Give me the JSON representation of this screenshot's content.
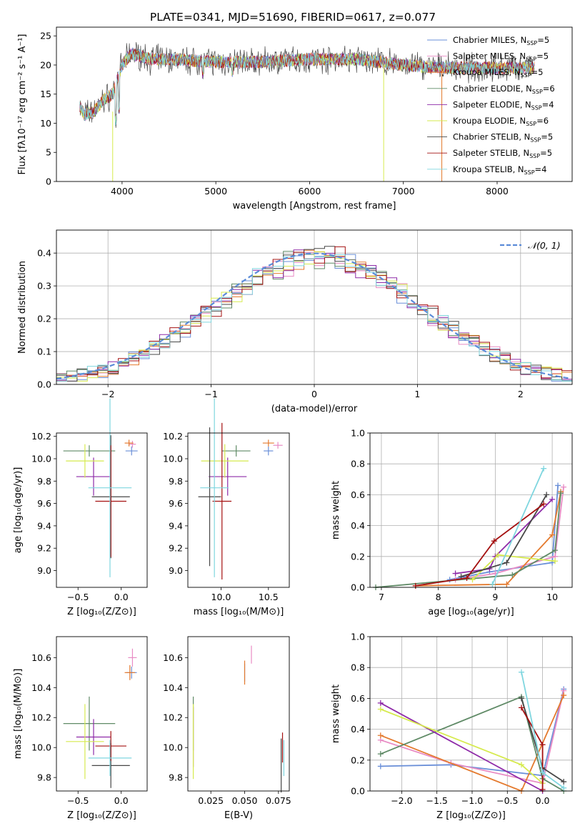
{
  "chart_data": [
    {
      "type": "line",
      "title": "PLATE=0341, MJD=51690, FIBERID=0617, z=0.077",
      "xlabel": "wavelength [Angstrom, rest frame]",
      "ylabel": "Flux [fλ10⁻¹⁷ erg cm⁻² s⁻¹ A⁻¹]",
      "xlim": [
        3300,
        8800
      ],
      "ylim": [
        0,
        26.5
      ],
      "xticks": [
        4000,
        5000,
        6000,
        7000,
        8000
      ],
      "yticks": [
        0,
        5,
        10,
        15,
        20,
        25
      ],
      "legend": "upper-right",
      "spectrum_shape": [
        [
          3550,
          13
        ],
        [
          3600,
          11.5
        ],
        [
          3700,
          12
        ],
        [
          3800,
          14
        ],
        [
          3900,
          15
        ],
        [
          4000,
          20
        ],
        [
          4100,
          22
        ],
        [
          4300,
          21
        ],
        [
          4500,
          21
        ],
        [
          5000,
          20.5
        ],
        [
          5500,
          20.5
        ],
        [
          6000,
          21
        ],
        [
          6500,
          21
        ],
        [
          7000,
          20
        ],
        [
          7500,
          19.5
        ],
        [
          8000,
          19.5
        ],
        [
          8400,
          19.5
        ]
      ],
      "series": [
        {
          "name": "Chabrier MILES",
          "nssp": "5",
          "color": "#6a8fd8"
        },
        {
          "name": "Salpeter MILES",
          "nssp": "5",
          "color": "#e88bc4"
        },
        {
          "name": "Kroupa MILES",
          "nssp": "5",
          "color": "#e47a2e"
        },
        {
          "name": "Chabrier ELODIE",
          "nssp": "6",
          "color": "#5f8a66"
        },
        {
          "name": "Salpeter ELODIE",
          "nssp": "4",
          "color": "#8e2aa8"
        },
        {
          "name": "Kroupa ELODIE",
          "nssp": "6",
          "color": "#d6ea4e"
        },
        {
          "name": "Chabrier STELIB",
          "nssp": "5",
          "color": "#474747"
        },
        {
          "name": "Salpeter STELIB",
          "nssp": "5",
          "color": "#a41010"
        },
        {
          "name": "Kroupa STELIB",
          "nssp": "4",
          "color": "#7fd6df"
        }
      ]
    },
    {
      "type": "line",
      "xlabel": "(data-model)/error",
      "ylabel": "Normed distribution",
      "xlim": [
        -2.5,
        2.5
      ],
      "ylim": [
        0,
        0.47
      ],
      "xticks": [
        -2,
        -1,
        0,
        1,
        2
      ],
      "yticks": [
        0.0,
        0.1,
        0.2,
        0.3,
        0.4
      ],
      "grid": true,
      "legend": "upper-right",
      "gaussian_label": "𝒩(0, 1)",
      "gaussian_color": "#5b8bd8"
    },
    {
      "type": "scatter",
      "xlabel": "Z [log₁₀(Z/Z⊙)]",
      "ylabel": "age  [log₁₀(age/yr)]",
      "xlim": [
        -0.75,
        0.3
      ],
      "ylim": [
        8.85,
        10.23
      ],
      "xticks": [
        -0.5,
        0.0
      ],
      "yticks": [
        9.0,
        9.2,
        9.4,
        9.6,
        9.8,
        10.0,
        10.2
      ],
      "points": [
        {
          "x": 0.12,
          "y": 10.07,
          "xerr": 0.07,
          "yerr": 0.04,
          "color": "#6a8fd8"
        },
        {
          "x": 0.13,
          "y": 10.13,
          "xerr": 0.04,
          "yerr": 0.03,
          "color": "#e88bc4"
        },
        {
          "x": 0.09,
          "y": 10.14,
          "xerr": 0.05,
          "yerr": 0.03,
          "color": "#e47a2e"
        },
        {
          "x": -0.37,
          "y": 10.07,
          "xerr": 0.3,
          "yerr": 0.05,
          "color": "#5f8a66"
        },
        {
          "x": -0.32,
          "y": 9.84,
          "xerr": 0.2,
          "yerr": 0.17,
          "color": "#8e2aa8"
        },
        {
          "x": -0.42,
          "y": 9.98,
          "xerr": 0.22,
          "yerr": 0.15,
          "color": "#d6ea4e"
        },
        {
          "x": -0.12,
          "y": 9.66,
          "xerr": 0.22,
          "yerr": 0.55,
          "color": "#474747"
        },
        {
          "x": -0.12,
          "y": 9.62,
          "xerr": 0.18,
          "yerr": 0.5,
          "color": "#a41010"
        },
        {
          "x": -0.13,
          "y": 9.74,
          "xerr": 0.25,
          "yerr": 0.8,
          "color": "#7fd6df"
        }
      ]
    },
    {
      "type": "scatter",
      "xlabel": "mass [log₁₀(M/M⊙)]",
      "xlim": [
        9.65,
        10.72
      ],
      "ylim": [
        8.85,
        10.23
      ],
      "xticks": [
        10.0,
        10.5
      ],
      "yticks": [
        9.0,
        9.2,
        9.4,
        9.6,
        9.8,
        10.0,
        10.2
      ],
      "points": [
        {
          "x": 10.5,
          "y": 10.07,
          "xerr": 0.05,
          "yerr": 0.04,
          "color": "#6a8fd8"
        },
        {
          "x": 10.6,
          "y": 10.12,
          "xerr": 0.05,
          "yerr": 0.03,
          "color": "#e88bc4"
        },
        {
          "x": 10.5,
          "y": 10.14,
          "xerr": 0.06,
          "yerr": 0.03,
          "color": "#e47a2e"
        },
        {
          "x": 10.16,
          "y": 10.07,
          "xerr": 0.15,
          "yerr": 0.05,
          "color": "#5f8a66"
        },
        {
          "x": 10.07,
          "y": 9.84,
          "xerr": 0.2,
          "yerr": 0.17,
          "color": "#8e2aa8"
        },
        {
          "x": 10.04,
          "y": 9.98,
          "xerr": 0.25,
          "yerr": 0.15,
          "color": "#d6ea4e"
        },
        {
          "x": 9.88,
          "y": 9.66,
          "xerr": 0.12,
          "yerr": 0.62,
          "color": "#474747"
        },
        {
          "x": 10.01,
          "y": 9.62,
          "xerr": 0.1,
          "yerr": 0.7,
          "color": "#a41010"
        },
        {
          "x": 9.93,
          "y": 9.74,
          "xerr": 0.15,
          "yerr": 0.8,
          "color": "#7fd6df"
        }
      ]
    },
    {
      "type": "line",
      "xlabel": "age  [log₁₀(age/yr)]",
      "ylabel": "mass weight",
      "xlim": [
        6.8,
        10.35
      ],
      "ylim": [
        0,
        1.0
      ],
      "xticks": [
        7,
        8,
        9,
        10
      ],
      "yticks": [
        0.0,
        0.2,
        0.4,
        0.6,
        0.8,
        1.0
      ],
      "grid": true,
      "series": [
        {
          "color": "#6a8fd8",
          "x": [
            8.2,
            8.9,
            10.0,
            10.1
          ],
          "y": [
            0.05,
            0.1,
            0.16,
            0.66
          ]
        },
        {
          "color": "#e88bc4",
          "x": [
            8.3,
            9.0,
            10.05,
            10.2
          ],
          "y": [
            0.05,
            0.09,
            0.2,
            0.65
          ]
        },
        {
          "color": "#e47a2e",
          "x": [
            7.6,
            9.2,
            10.0,
            10.15
          ],
          "y": [
            0.01,
            0.02,
            0.34,
            0.62
          ]
        },
        {
          "color": "#5f8a66",
          "x": [
            6.9,
            9.3,
            10.05,
            10.15
          ],
          "y": [
            0.0,
            0.08,
            0.24,
            0.61
          ]
        },
        {
          "color": "#8e2aa8",
          "x": [
            8.3,
            8.9,
            9.0,
            10.0
          ],
          "y": [
            0.09,
            0.12,
            0.2,
            0.57
          ]
        },
        {
          "color": "#d6ea4e",
          "x": [
            8.6,
            9.05,
            10.05
          ],
          "y": [
            0.05,
            0.21,
            0.17
          ]
        },
        {
          "color": "#474747",
          "x": [
            8.4,
            9.2,
            9.9
          ],
          "y": [
            0.07,
            0.16,
            0.6
          ]
        },
        {
          "color": "#a41010",
          "x": [
            7.6,
            8.5,
            8.98,
            9.85
          ],
          "y": [
            0.01,
            0.06,
            0.3,
            0.54
          ]
        },
        {
          "color": "#7fd6df",
          "x": [
            8.95,
            9.85
          ],
          "y": [
            0.02,
            0.77
          ]
        }
      ]
    },
    {
      "type": "scatter",
      "xlabel": "Z [log₁₀(Z/Z⊙)]",
      "ylabel": "mass [log₁₀(M/M⊙)]",
      "xlim": [
        -0.75,
        0.3
      ],
      "ylim": [
        9.71,
        10.74
      ],
      "xticks": [
        -0.5,
        0.0
      ],
      "yticks": [
        9.8,
        10.0,
        10.2,
        10.4,
        10.6
      ],
      "points": [
        {
          "x": 0.12,
          "y": 10.5,
          "xerr": 0.06,
          "yerr": 0.04,
          "color": "#6a8fd8"
        },
        {
          "x": 0.13,
          "y": 10.6,
          "xerr": 0.05,
          "yerr": 0.06,
          "color": "#e88bc4"
        },
        {
          "x": 0.1,
          "y": 10.5,
          "xerr": 0.06,
          "yerr": 0.05,
          "color": "#e47a2e"
        },
        {
          "x": -0.37,
          "y": 10.16,
          "xerr": 0.3,
          "yerr": 0.18,
          "color": "#5f8a66"
        },
        {
          "x": -0.32,
          "y": 10.07,
          "xerr": 0.2,
          "yerr": 0.12,
          "color": "#8e2aa8"
        },
        {
          "x": -0.42,
          "y": 10.04,
          "xerr": 0.22,
          "yerr": 0.25,
          "color": "#d6ea4e"
        },
        {
          "x": -0.12,
          "y": 9.88,
          "xerr": 0.22,
          "yerr": 0.15,
          "color": "#474747"
        },
        {
          "x": -0.12,
          "y": 10.01,
          "xerr": 0.18,
          "yerr": 0.1,
          "color": "#a41010"
        },
        {
          "x": -0.13,
          "y": 9.93,
          "xerr": 0.25,
          "yerr": 0.12,
          "color": "#7fd6df"
        }
      ]
    },
    {
      "type": "scatter",
      "xlabel": "E(B-V)",
      "xlim": [
        0.008,
        0.083
      ],
      "ylim": [
        9.71,
        10.74
      ],
      "xticks": [
        0.025,
        0.05,
        0.075
      ],
      "yticks": [
        9.8,
        10.0,
        10.2,
        10.4,
        10.6
      ],
      "points": [
        {
          "x": 0.05,
          "y": 10.5,
          "xerr": 0.0,
          "yerr": 0.06,
          "color": "#6a8fd8"
        },
        {
          "x": 0.055,
          "y": 10.62,
          "xerr": 0.0,
          "yerr": 0.06,
          "color": "#e88bc4"
        },
        {
          "x": 0.05,
          "y": 10.5,
          "xerr": 0.0,
          "yerr": 0.08,
          "color": "#e47a2e"
        },
        {
          "x": 0.012,
          "y": 10.16,
          "xerr": 0.0,
          "yerr": 0.18,
          "color": "#5f8a66"
        },
        {
          "x": 0.012,
          "y": 10.07,
          "xerr": 0.0,
          "yerr": 0.2,
          "color": "#8e2aa8"
        },
        {
          "x": 0.012,
          "y": 10.04,
          "xerr": 0.0,
          "yerr": 0.25,
          "color": "#d6ea4e"
        },
        {
          "x": 0.077,
          "y": 9.88,
          "xerr": 0.0,
          "yerr": 0.18,
          "color": "#474747"
        },
        {
          "x": 0.078,
          "y": 10.0,
          "xerr": 0.0,
          "yerr": 0.1,
          "color": "#a41010"
        },
        {
          "x": 0.079,
          "y": 9.93,
          "xerr": 0.0,
          "yerr": 0.12,
          "color": "#7fd6df"
        }
      ]
    },
    {
      "type": "line",
      "xlabel": "Z [log₁₀(Z/Z⊙)]",
      "ylabel": "mass weight",
      "xlim": [
        -2.45,
        0.42
      ],
      "ylim": [
        0,
        1.0
      ],
      "xticks": [
        -2.0,
        -1.5,
        -1.0,
        -0.5,
        0.0
      ],
      "yticks": [
        0.0,
        0.2,
        0.4,
        0.6,
        0.8,
        1.0
      ],
      "grid": true,
      "series": [
        {
          "color": "#6a8fd8",
          "x": [
            -2.3,
            -1.3,
            0.0,
            0.3
          ],
          "y": [
            0.16,
            0.17,
            0.1,
            0.66
          ]
        },
        {
          "color": "#e88bc4",
          "x": [
            -2.3,
            -1.3,
            0.0,
            0.3
          ],
          "y": [
            0.33,
            0.18,
            0.05,
            0.65
          ]
        },
        {
          "color": "#e47a2e",
          "x": [
            -2.3,
            -0.3,
            0.3
          ],
          "y": [
            0.36,
            0.0,
            0.62
          ]
        },
        {
          "color": "#5f8a66",
          "x": [
            -2.3,
            -0.3,
            0.0,
            0.3
          ],
          "y": [
            0.24,
            0.61,
            0.08,
            0.0
          ]
        },
        {
          "color": "#8e2aa8",
          "x": [
            -2.3,
            0.0
          ],
          "y": [
            0.57,
            0.0
          ]
        },
        {
          "color": "#d6ea4e",
          "x": [
            -2.3,
            -0.3,
            0.0
          ],
          "y": [
            0.53,
            0.17,
            0.05
          ]
        },
        {
          "color": "#474747",
          "x": [
            -0.3,
            0.0,
            0.3
          ],
          "y": [
            0.6,
            0.15,
            0.06
          ]
        },
        {
          "color": "#a41010",
          "x": [
            -0.3,
            0.0,
            0.0
          ],
          "y": [
            0.54,
            0.3,
            0.01
          ]
        },
        {
          "color": "#7fd6df",
          "x": [
            -0.3,
            0.0,
            0.3
          ],
          "y": [
            0.77,
            0.12,
            0.02
          ]
        }
      ]
    }
  ]
}
